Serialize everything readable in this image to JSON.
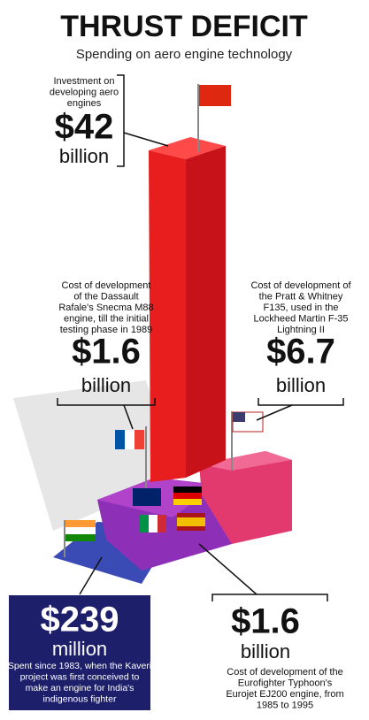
{
  "header": {
    "title": "THRUST DEFICIT",
    "subtitle": "Spending on aero engine technology"
  },
  "callouts": [
    {
      "description": [
        "Investment on",
        "developing aero",
        "engines"
      ],
      "amount": "$42",
      "unit": "billion"
    },
    {
      "description": [
        "Cost of development",
        "of the Dassault",
        "Rafale's Snecma M88",
        "engine, till the initial",
        "testing phase in 1989"
      ],
      "amount": "$1.6",
      "unit": "billion"
    },
    {
      "description": [
        "Cost of development of",
        "the Pratt & Whitney",
        "F135, used in the",
        "Lockheed Martin F-35",
        "Lightning II"
      ],
      "amount": "$6.7",
      "unit": "billion"
    },
    {
      "description": [
        "Spent since 1983, when the Kaveri",
        "project was first conceived to",
        "make an engine for India's",
        "indigenous fighter"
      ],
      "amount": "$239",
      "unit": "million"
    },
    {
      "description": [
        "Cost of development of the",
        "Eurofighter Typhoon's",
        "Eurojet EJ200 engine, from",
        "1985 to 1995"
      ],
      "amount": "$1.6",
      "unit": "billion"
    }
  ]
}
